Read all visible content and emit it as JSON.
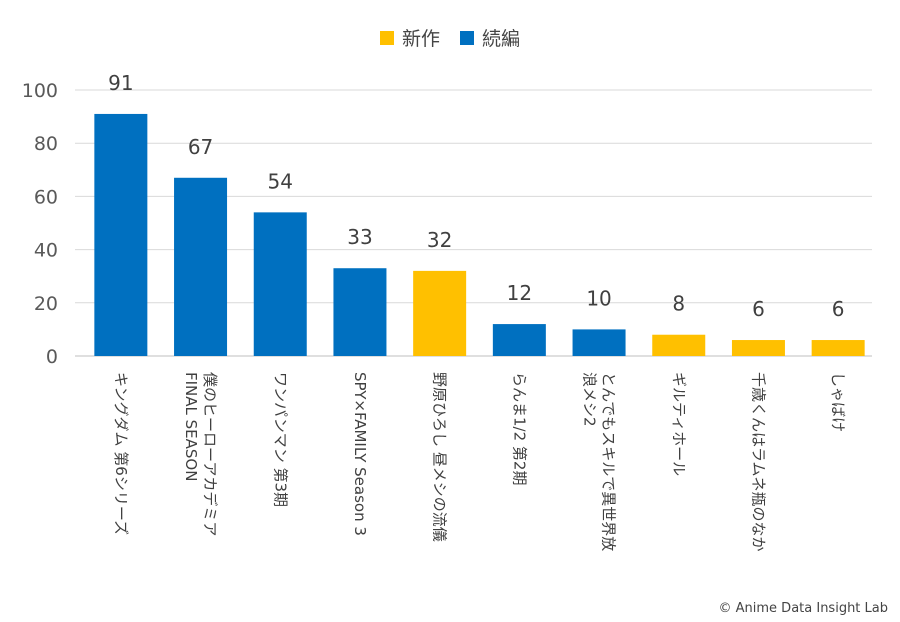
{
  "chart_data": {
    "type": "bar",
    "title": "",
    "xlabel": "",
    "ylabel": "",
    "ylim": [
      0,
      100
    ],
    "yticks": [
      0,
      20,
      40,
      60,
      80,
      100
    ],
    "grid": true,
    "legend_position": "top",
    "legend": [
      {
        "name": "新作",
        "color": "#FFC000"
      },
      {
        "name": "続編",
        "color": "#0070C0"
      }
    ],
    "categories": [
      [
        "キングダム 第6シリーズ"
      ],
      [
        "FINAL SEASON",
        "僕のヒーローアカデミア"
      ],
      [
        "ワンパンマン 第3期"
      ],
      [
        "SPY×FAMILY Season 3"
      ],
      [
        "野原ひろし 昼メシの流儀"
      ],
      [
        "らんま1/2 第2期"
      ],
      [
        "浪メシ2",
        "とんでもスキルで異世界放"
      ],
      [
        "ギルティホール"
      ],
      [
        "千歳くんはラムネ瓶のなか"
      ],
      [
        "しゃばけ"
      ]
    ],
    "values": [
      91,
      67,
      54,
      33,
      32,
      12,
      10,
      8,
      6,
      6
    ],
    "series_of_bar": [
      "続編",
      "続編",
      "続編",
      "続編",
      "新作",
      "続編",
      "続編",
      "新作",
      "新作",
      "新作"
    ]
  },
  "credit": "© Anime Data Insight Lab"
}
